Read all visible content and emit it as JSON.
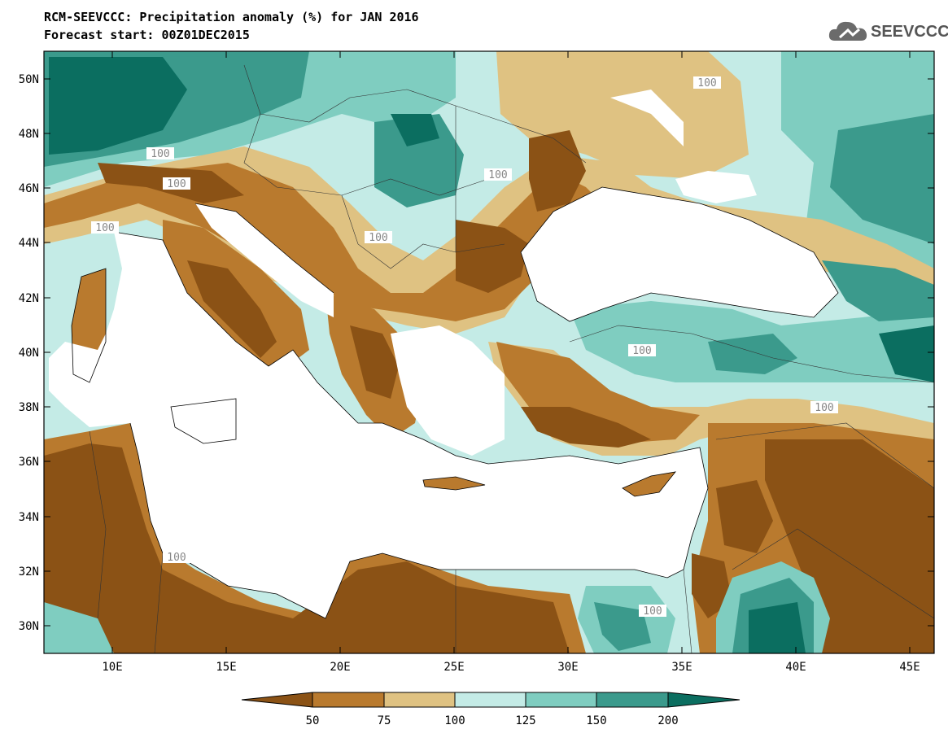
{
  "header": {
    "title": "RCM-SEEVCCC: Precipitation anomaly (%) for JAN 2016",
    "subtitle": "Forecast start: 00Z01DEC2015"
  },
  "logo": {
    "text": "SEEVCCC",
    "icon": "cloud-icon"
  },
  "map": {
    "lat_labels": [
      "50N",
      "48N",
      "46N",
      "44N",
      "42N",
      "40N",
      "38N",
      "36N",
      "34N",
      "32N",
      "30N"
    ],
    "lon_labels": [
      "10E",
      "15E",
      "20E",
      "25E",
      "30E",
      "35E",
      "40E",
      "45E"
    ],
    "contour_label": "100"
  },
  "legend": {
    "colors": [
      "#8b5215",
      "#b97a2e",
      "#dfc282",
      "#c4ebe6",
      "#7fcdc0",
      "#3b9a8c",
      "#0b6e60"
    ],
    "labels": [
      "50",
      "75",
      "100",
      "125",
      "150",
      "200"
    ]
  },
  "palette": {
    "very_dry": "#8b5215",
    "dry": "#b97a2e",
    "slightly_dry": "#dfc282",
    "slightly_wet": "#c4ebe6",
    "wet": "#7fcdc0",
    "very_wet": "#3b9a8c",
    "extreme_wet": "#0b6e60"
  }
}
